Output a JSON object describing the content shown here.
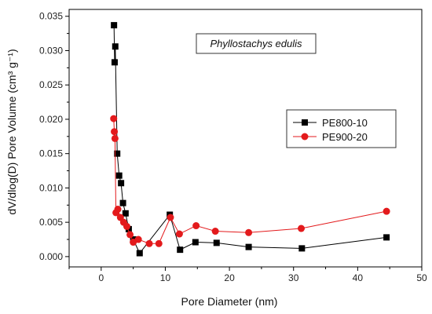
{
  "chart_data": {
    "type": "line",
    "xlabel": "Pore Diameter (nm)",
    "ylabel": "dV/dlog(D) Pore Volume (cm³ g⁻¹)",
    "xlim": [
      -5,
      50
    ],
    "ylim": [
      -0.0015,
      0.036
    ],
    "xticks": [
      0,
      10,
      20,
      30,
      40,
      50
    ],
    "yticks": [
      0.0,
      0.005,
      0.01,
      0.015,
      0.02,
      0.025,
      0.03,
      0.035
    ],
    "ytick_labels": [
      "0.000",
      "0.005",
      "0.010",
      "0.015",
      "0.020",
      "0.025",
      "0.030",
      "0.035"
    ],
    "grid": false,
    "legend_position": "right",
    "annotation": "Phyllostachys edulis",
    "series": [
      {
        "name": "PE800-10",
        "color": "#000000",
        "marker": "square",
        "x": [
          2.0,
          2.1,
          2.2,
          2.5,
          2.8,
          3.1,
          3.4,
          3.8,
          4.3,
          5.0,
          6.0,
          10.7,
          12.3,
          14.7,
          18.0,
          23.0,
          31.3,
          44.5
        ],
        "y": [
          0.0337,
          0.0283,
          0.0306,
          0.015,
          0.0118,
          0.0107,
          0.0078,
          0.0063,
          0.004,
          0.0025,
          0.0005,
          0.0061,
          0.001,
          0.0021,
          0.002,
          0.0014,
          0.0012,
          0.0028
        ]
      },
      {
        "name": "PE900-20",
        "color": "#e31a1c",
        "marker": "circle",
        "x": [
          1.95,
          2.05,
          2.15,
          2.3,
          2.6,
          3.0,
          3.5,
          4.0,
          4.5,
          5.0,
          5.8,
          7.5,
          9.0,
          10.8,
          12.2,
          14.8,
          17.8,
          23.0,
          31.2,
          44.5
        ],
        "y": [
          0.0201,
          0.0182,
          0.0172,
          0.0064,
          0.0069,
          0.0057,
          0.005,
          0.0044,
          0.0032,
          0.0021,
          0.0025,
          0.0019,
          0.0019,
          0.0057,
          0.0033,
          0.0045,
          0.0037,
          0.0035,
          0.0041,
          0.0066
        ]
      }
    ]
  }
}
